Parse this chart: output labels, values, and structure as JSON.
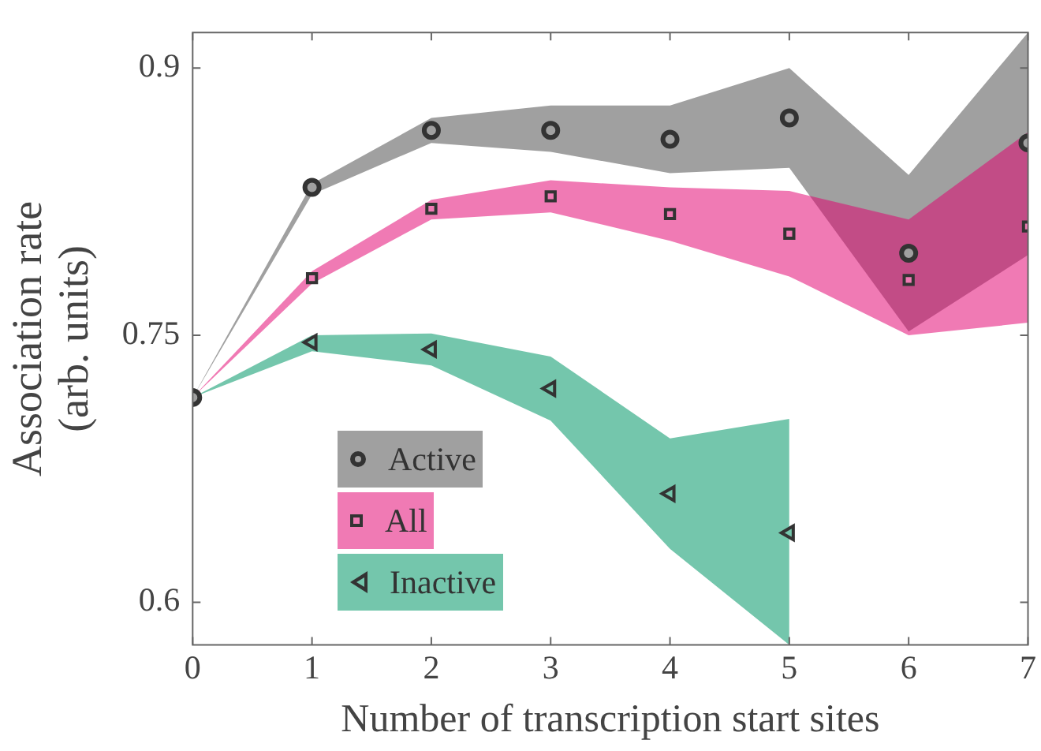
{
  "chart_data": {
    "type": "scatter",
    "xlabel": "Number of transcription start sites",
    "ylabel": "Association rate\n(arb. units)",
    "xlim": [
      0,
      7
    ],
    "xticks": [
      0,
      1,
      2,
      3,
      4,
      5,
      6,
      7
    ],
    "ylim": [
      0.576,
      0.92
    ],
    "yticks": [
      0.6,
      0.75,
      0.9
    ],
    "grid": false,
    "legend": "bottom left",
    "series": [
      {
        "name": "Active",
        "color": "#a0a0a0",
        "marker": "circle",
        "x": [
          0,
          1,
          2,
          3,
          4,
          5,
          6,
          7
        ],
        "values": [
          0.715,
          0.833,
          0.865,
          0.865,
          0.86,
          0.872,
          0.796,
          0.858
        ],
        "lower": [
          0.715,
          0.829,
          0.858,
          0.853,
          0.841,
          0.844,
          0.752,
          0.795
        ],
        "upper": [
          0.715,
          0.835,
          0.872,
          0.879,
          0.879,
          0.9,
          0.84,
          0.92
        ]
      },
      {
        "name": "All",
        "color": "#f07ab4",
        "marker": "square",
        "x": [
          0,
          1,
          2,
          3,
          4,
          5,
          6,
          7
        ],
        "values": [
          null,
          0.782,
          0.821,
          0.828,
          0.818,
          0.807,
          0.781,
          0.811
        ],
        "lower": [
          0.715,
          0.779,
          0.815,
          0.819,
          0.803,
          0.783,
          0.75,
          0.757
        ],
        "upper": [
          0.715,
          0.786,
          0.826,
          0.837,
          0.833,
          0.831,
          0.815,
          0.864
        ]
      },
      {
        "name": "Inactive",
        "color": "#74c6ac",
        "marker": "triangle",
        "x": [
          0,
          1,
          2,
          3,
          4,
          5
        ],
        "values": [
          null,
          0.746,
          0.742,
          0.72,
          0.661,
          0.639
        ],
        "lower": [
          0.715,
          0.741,
          0.733,
          0.702,
          0.63,
          0.576
        ],
        "upper": [
          0.715,
          0.75,
          0.751,
          0.738,
          0.692,
          0.703
        ]
      }
    ]
  }
}
